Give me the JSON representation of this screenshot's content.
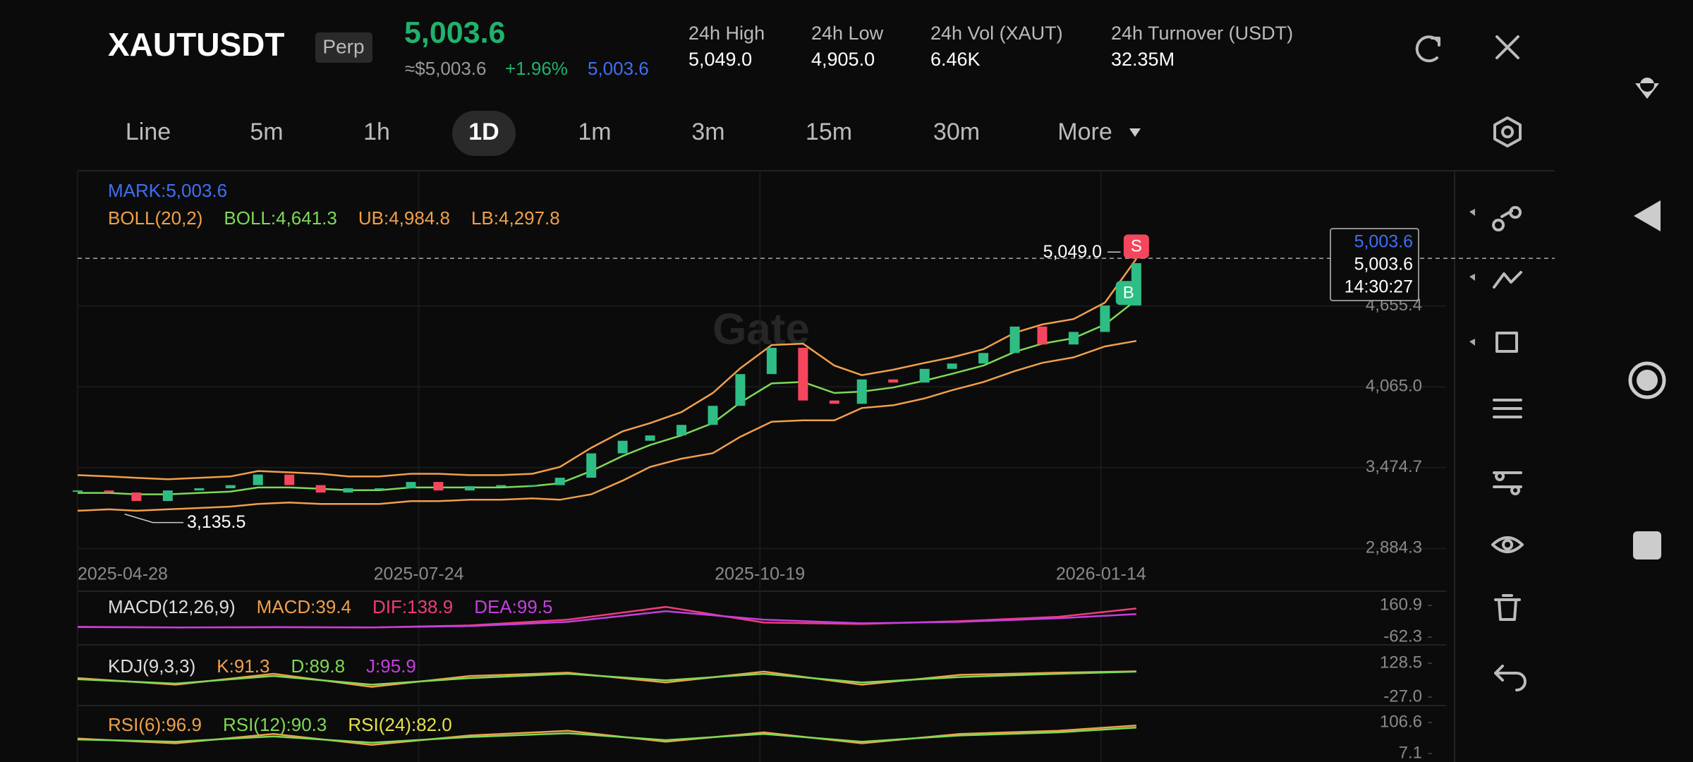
{
  "header": {
    "symbol": "XAUTUSDT",
    "badge": "Perp",
    "price": "5,003.6",
    "approx_price": "≈$5,003.6",
    "change": "+1.96%",
    "mark_price": "5,003.6",
    "stats": [
      {
        "label": "24h High",
        "value": "5,049.0"
      },
      {
        "label": "24h Low",
        "value": "4,905.0"
      },
      {
        "label": "24h Vol (XAUT)",
        "value": "6.46K"
      },
      {
        "label": "24h Turnover (USDT)",
        "value": "32.35M"
      }
    ]
  },
  "tabs": [
    "Line",
    "5m",
    "1h",
    "1D",
    "1m",
    "3m",
    "15m",
    "30m",
    "More"
  ],
  "active_tab": 3,
  "watermark": "Gate",
  "chart_data": [
    {
      "type": "candlestick",
      "mark_legend": "MARK:5,003.6",
      "mark_color": "#3f6ff5",
      "legend": [
        {
          "text": "BOLL(20,2)",
          "color": "#f0a04b"
        },
        {
          "text": "BOLL:4,641.3",
          "color": "#7ed957"
        },
        {
          "text": "UB:4,984.8",
          "color": "#f0a04b"
        },
        {
          "text": "LB:4,297.8",
          "color": "#f0a04b"
        }
      ],
      "x": [
        0,
        8,
        15,
        23,
        31,
        39,
        46,
        54,
        62,
        69,
        77,
        85,
        92,
        100,
        108,
        116,
        123,
        131,
        139,
        146,
        154,
        162,
        169,
        177,
        185,
        193,
        200,
        208,
        216,
        223,
        231,
        239,
        246,
        254,
        262,
        270
      ],
      "close": [
        3308,
        3293,
        3231,
        3308,
        3324,
        3347,
        3424,
        3347,
        3293,
        3324,
        3324,
        3370,
        3308,
        3339,
        3347,
        3347,
        3401,
        3579,
        3671,
        3710,
        3787,
        3926,
        4158,
        4350,
        3965,
        3941,
        4119,
        4096,
        4196,
        4235,
        4312,
        4505,
        4374,
        4466,
        4659,
        4968
      ],
      "ub": {
        "color": "#f0a04b",
        "values": [
          3420,
          3410,
          3400,
          3390,
          3400,
          3410,
          3450,
          3440,
          3430,
          3410,
          3410,
          3430,
          3430,
          3420,
          3420,
          3430,
          3480,
          3620,
          3740,
          3800,
          3880,
          4020,
          4200,
          4370,
          4380,
          4220,
          4150,
          4190,
          4240,
          4280,
          4340,
          4460,
          4520,
          4560,
          4680,
          5000
        ]
      },
      "mid": {
        "color": "#7ed957",
        "values": [
          3290,
          3290,
          3280,
          3280,
          3290,
          3300,
          3330,
          3330,
          3320,
          3310,
          3310,
          3330,
          3330,
          3330,
          3330,
          3340,
          3360,
          3450,
          3560,
          3640,
          3710,
          3800,
          3950,
          4090,
          4100,
          4020,
          4030,
          4060,
          4110,
          4160,
          4220,
          4320,
          4380,
          4420,
          4520,
          4700
        ]
      },
      "lb": {
        "color": "#f0a04b",
        "values": [
          3160,
          3170,
          3160,
          3170,
          3180,
          3190,
          3210,
          3220,
          3210,
          3210,
          3210,
          3230,
          3230,
          3240,
          3240,
          3250,
          3240,
          3280,
          3380,
          3480,
          3540,
          3580,
          3700,
          3810,
          3820,
          3820,
          3910,
          3930,
          3980,
          4040,
          4100,
          4180,
          4240,
          4280,
          4360,
          4400
        ]
      },
      "up_color": "#2ebd85",
      "down_color": "#f6465d",
      "xlim": [
        0,
        349
      ],
      "xticks": [
        {
          "value": 0,
          "label": "2025-04-28"
        },
        {
          "value": 87,
          "label": "2025-07-24"
        },
        {
          "value": 174,
          "label": "2025-10-19"
        },
        {
          "value": 261,
          "label": "2026-01-14"
        }
      ],
      "ylim": [
        2814,
        5643
      ],
      "yticks": [
        {
          "value": 2884.3,
          "label": "2,884.3"
        },
        {
          "value": 3474.7,
          "label": "3,474.7"
        },
        {
          "value": 4065.0,
          "label": "4,065.0"
        },
        {
          "value": 4655.4,
          "label": "4,655.4"
        }
      ],
      "high": {
        "value": 5049.0,
        "label": "5,049.0",
        "x": 266
      },
      "low": {
        "value": 3135.5,
        "label": "3,135.5",
        "x": 12
      },
      "last": {
        "value": 5003.6,
        "label": "5,003.6",
        "mark_label": "5,003.6",
        "countdown": "14:30:27"
      },
      "signals": [
        {
          "text": "S",
          "color": "#f6465d",
          "x": 270,
          "value": 5090
        },
        {
          "text": "B",
          "color": "#2ebd85",
          "x": 268,
          "value": 4750
        }
      ]
    },
    {
      "type": "line",
      "legend": [
        {
          "text": "MACD(12,26,9)",
          "color": "#dddddd"
        },
        {
          "text": "MACD:39.4",
          "color": "#f0a04b"
        },
        {
          "text": "DIF:138.9",
          "color": "#ee3d7a"
        },
        {
          "text": "DEA:99.5",
          "color": "#c43fe0"
        }
      ],
      "x": [
        0,
        25,
        50,
        75,
        100,
        125,
        150,
        175,
        200,
        225,
        250,
        270
      ],
      "xlim": [
        0,
        349
      ],
      "ylim": [
        -62.3,
        160.9
      ],
      "yticks": [
        -62.3,
        160.9
      ],
      "series": [
        {
          "color": "#ee3d7a",
          "values": [
            10,
            5,
            8,
            5,
            20,
            60,
            150,
            40,
            30,
            50,
            80,
            138.9
          ]
        },
        {
          "color": "#c43fe0",
          "values": [
            8,
            6,
            7,
            6,
            15,
            45,
            120,
            60,
            35,
            45,
            70,
            99.5
          ]
        }
      ]
    },
    {
      "type": "line",
      "legend": [
        {
          "text": "KDJ(9,3,3)",
          "color": "#dddddd"
        },
        {
          "text": "K:91.3",
          "color": "#f0a04b"
        },
        {
          "text": "D:89.8",
          "color": "#7ed957"
        },
        {
          "text": "J:95.9",
          "color": "#c43fe0"
        }
      ],
      "x": [
        0,
        25,
        50,
        75,
        100,
        125,
        150,
        175,
        200,
        225,
        250,
        270
      ],
      "xlim": [
        0,
        349
      ],
      "ylim": [
        -27.0,
        128.5
      ],
      "yticks": [
        {
          "value": -27.0,
          "label": "-27.0"
        },
        128.5
      ],
      "series": [
        {
          "color": "#f0a04b",
          "values": [
            60,
            30,
            80,
            20,
            70,
            85,
            40,
            90,
            30,
            75,
            85,
            91.3
          ]
        },
        {
          "color": "#7ed957",
          "values": [
            55,
            35,
            70,
            30,
            60,
            80,
            50,
            80,
            40,
            65,
            80,
            89.8
          ]
        }
      ]
    },
    {
      "type": "line",
      "legend": [
        {
          "text": "RSI(6):96.9",
          "color": "#f0a04b"
        },
        {
          "text": "RSI(12):90.3",
          "color": "#7ed957"
        },
        {
          "text": "RSI(24):82.0",
          "color": "#e6e04a"
        }
      ],
      "x": [
        0,
        25,
        50,
        75,
        100,
        125,
        150,
        175,
        200,
        225,
        250,
        270
      ],
      "xlim": [
        0,
        349
      ],
      "ylim": [
        7.1,
        106.6
      ],
      "yticks": [
        7.1,
        106.6
      ],
      "series": [
        {
          "color": "#f0a04b",
          "values": [
            55,
            40,
            70,
            35,
            65,
            80,
            45,
            75,
            40,
            70,
            80,
            96.9
          ]
        },
        {
          "color": "#7ed957",
          "values": [
            52,
            45,
            62,
            42,
            60,
            72,
            50,
            70,
            45,
            65,
            75,
            90.3
          ]
        }
      ]
    }
  ]
}
